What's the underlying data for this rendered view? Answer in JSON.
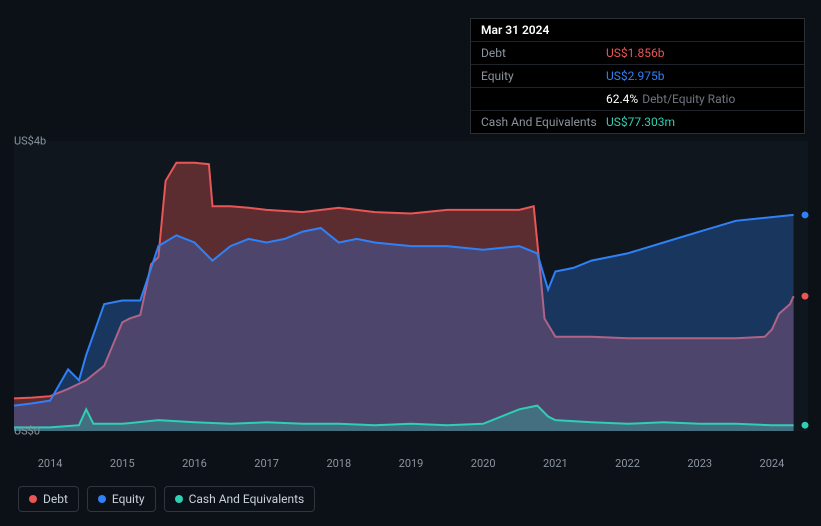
{
  "tooltip": {
    "date": "Mar 31 2024",
    "rows": [
      {
        "label": "Debt",
        "value": "US$1.856b",
        "color": "#e85656"
      },
      {
        "label": "Equity",
        "value": "US$2.975b",
        "color": "#2f81f7"
      },
      {
        "label": "",
        "value": "62.4%",
        "sub": "Debt/Equity Ratio",
        "color": "#ffffff"
      },
      {
        "label": "Cash And Equivalents",
        "value": "US$77.303m",
        "color": "#2ecfb3"
      }
    ]
  },
  "chart": {
    "type": "area",
    "background_color": "#0c1117",
    "plot_bg": "rgba(20,26,34,0.6)",
    "grid_color": "#1f242b",
    "ylim": [
      0,
      4
    ],
    "y_ticks": [
      {
        "v": 0,
        "label": "US$0"
      },
      {
        "v": 4,
        "label": "US$4b"
      }
    ],
    "x_years": [
      2014,
      2015,
      2016,
      2017,
      2018,
      2019,
      2020,
      2021,
      2022,
      2023,
      2024
    ],
    "x_range": [
      2013.5,
      2024.5
    ],
    "series": [
      {
        "name": "Debt",
        "color": "#e85656",
        "fill": "rgba(232,86,86,0.35)",
        "line_width": 2,
        "data": [
          [
            2013.5,
            0.45
          ],
          [
            2013.75,
            0.46
          ],
          [
            2014.0,
            0.48
          ],
          [
            2014.25,
            0.58
          ],
          [
            2014.5,
            0.7
          ],
          [
            2014.75,
            0.9
          ],
          [
            2015.0,
            1.5
          ],
          [
            2015.1,
            1.55
          ],
          [
            2015.25,
            1.6
          ],
          [
            2015.4,
            2.3
          ],
          [
            2015.5,
            2.4
          ],
          [
            2015.6,
            3.45
          ],
          [
            2015.75,
            3.7
          ],
          [
            2016.0,
            3.7
          ],
          [
            2016.2,
            3.68
          ],
          [
            2016.25,
            3.1
          ],
          [
            2016.5,
            3.1
          ],
          [
            2016.75,
            3.08
          ],
          [
            2017.0,
            3.05
          ],
          [
            2017.5,
            3.02
          ],
          [
            2018.0,
            3.08
          ],
          [
            2018.5,
            3.02
          ],
          [
            2019.0,
            3.0
          ],
          [
            2019.5,
            3.05
          ],
          [
            2020.0,
            3.05
          ],
          [
            2020.5,
            3.05
          ],
          [
            2020.7,
            3.1
          ],
          [
            2020.8,
            2.1
          ],
          [
            2020.85,
            1.55
          ],
          [
            2021.0,
            1.3
          ],
          [
            2021.25,
            1.3
          ],
          [
            2021.5,
            1.3
          ],
          [
            2022.0,
            1.28
          ],
          [
            2022.5,
            1.28
          ],
          [
            2023.0,
            1.28
          ],
          [
            2023.5,
            1.28
          ],
          [
            2023.9,
            1.3
          ],
          [
            2024.0,
            1.4
          ],
          [
            2024.1,
            1.62
          ],
          [
            2024.25,
            1.75
          ],
          [
            2024.3,
            1.86
          ]
        ]
      },
      {
        "name": "Equity",
        "color": "#2f81f7",
        "fill": "rgba(47,129,247,0.30)",
        "line_width": 2,
        "data": [
          [
            2013.5,
            0.35
          ],
          [
            2013.75,
            0.38
          ],
          [
            2014.0,
            0.42
          ],
          [
            2014.25,
            0.85
          ],
          [
            2014.4,
            0.7
          ],
          [
            2014.5,
            1.05
          ],
          [
            2014.75,
            1.75
          ],
          [
            2015.0,
            1.8
          ],
          [
            2015.25,
            1.8
          ],
          [
            2015.5,
            2.55
          ],
          [
            2015.75,
            2.7
          ],
          [
            2016.0,
            2.6
          ],
          [
            2016.25,
            2.35
          ],
          [
            2016.5,
            2.55
          ],
          [
            2016.75,
            2.65
          ],
          [
            2017.0,
            2.6
          ],
          [
            2017.25,
            2.65
          ],
          [
            2017.5,
            2.75
          ],
          [
            2017.75,
            2.8
          ],
          [
            2018.0,
            2.6
          ],
          [
            2018.25,
            2.65
          ],
          [
            2018.5,
            2.6
          ],
          [
            2019.0,
            2.55
          ],
          [
            2019.5,
            2.55
          ],
          [
            2020.0,
            2.5
          ],
          [
            2020.5,
            2.55
          ],
          [
            2020.75,
            2.45
          ],
          [
            2020.9,
            1.95
          ],
          [
            2021.0,
            2.2
          ],
          [
            2021.25,
            2.25
          ],
          [
            2021.5,
            2.35
          ],
          [
            2022.0,
            2.45
          ],
          [
            2022.5,
            2.6
          ],
          [
            2023.0,
            2.75
          ],
          [
            2023.5,
            2.9
          ],
          [
            2024.0,
            2.95
          ],
          [
            2024.3,
            2.98
          ]
        ]
      },
      {
        "name": "Cash And Equivalents",
        "color": "#2ecfb3",
        "fill": "rgba(46,207,179,0.30)",
        "line_width": 2,
        "data": [
          [
            2013.5,
            0.05
          ],
          [
            2014.0,
            0.05
          ],
          [
            2014.4,
            0.08
          ],
          [
            2014.5,
            0.3
          ],
          [
            2014.6,
            0.1
          ],
          [
            2015.0,
            0.1
          ],
          [
            2015.5,
            0.15
          ],
          [
            2016.0,
            0.12
          ],
          [
            2016.5,
            0.1
          ],
          [
            2017.0,
            0.12
          ],
          [
            2017.5,
            0.1
          ],
          [
            2018.0,
            0.1
          ],
          [
            2018.5,
            0.08
          ],
          [
            2019.0,
            0.1
          ],
          [
            2019.5,
            0.08
          ],
          [
            2020.0,
            0.1
          ],
          [
            2020.5,
            0.3
          ],
          [
            2020.75,
            0.35
          ],
          [
            2020.9,
            0.2
          ],
          [
            2021.0,
            0.15
          ],
          [
            2021.5,
            0.12
          ],
          [
            2022.0,
            0.1
          ],
          [
            2022.5,
            0.12
          ],
          [
            2023.0,
            0.1
          ],
          [
            2023.5,
            0.1
          ],
          [
            2024.0,
            0.08
          ],
          [
            2024.3,
            0.08
          ]
        ]
      }
    ],
    "end_markers": [
      {
        "name": "Equity",
        "color": "#2f81f7",
        "y": 2.98
      },
      {
        "name": "Debt",
        "color": "#e85656",
        "y": 1.86
      },
      {
        "name": "Cash And Equivalents",
        "color": "#2ecfb3",
        "y": 0.08
      }
    ]
  },
  "legend": [
    {
      "label": "Debt",
      "color": "#e85656"
    },
    {
      "label": "Equity",
      "color": "#2f81f7"
    },
    {
      "label": "Cash And Equivalents",
      "color": "#2ecfb3"
    }
  ]
}
